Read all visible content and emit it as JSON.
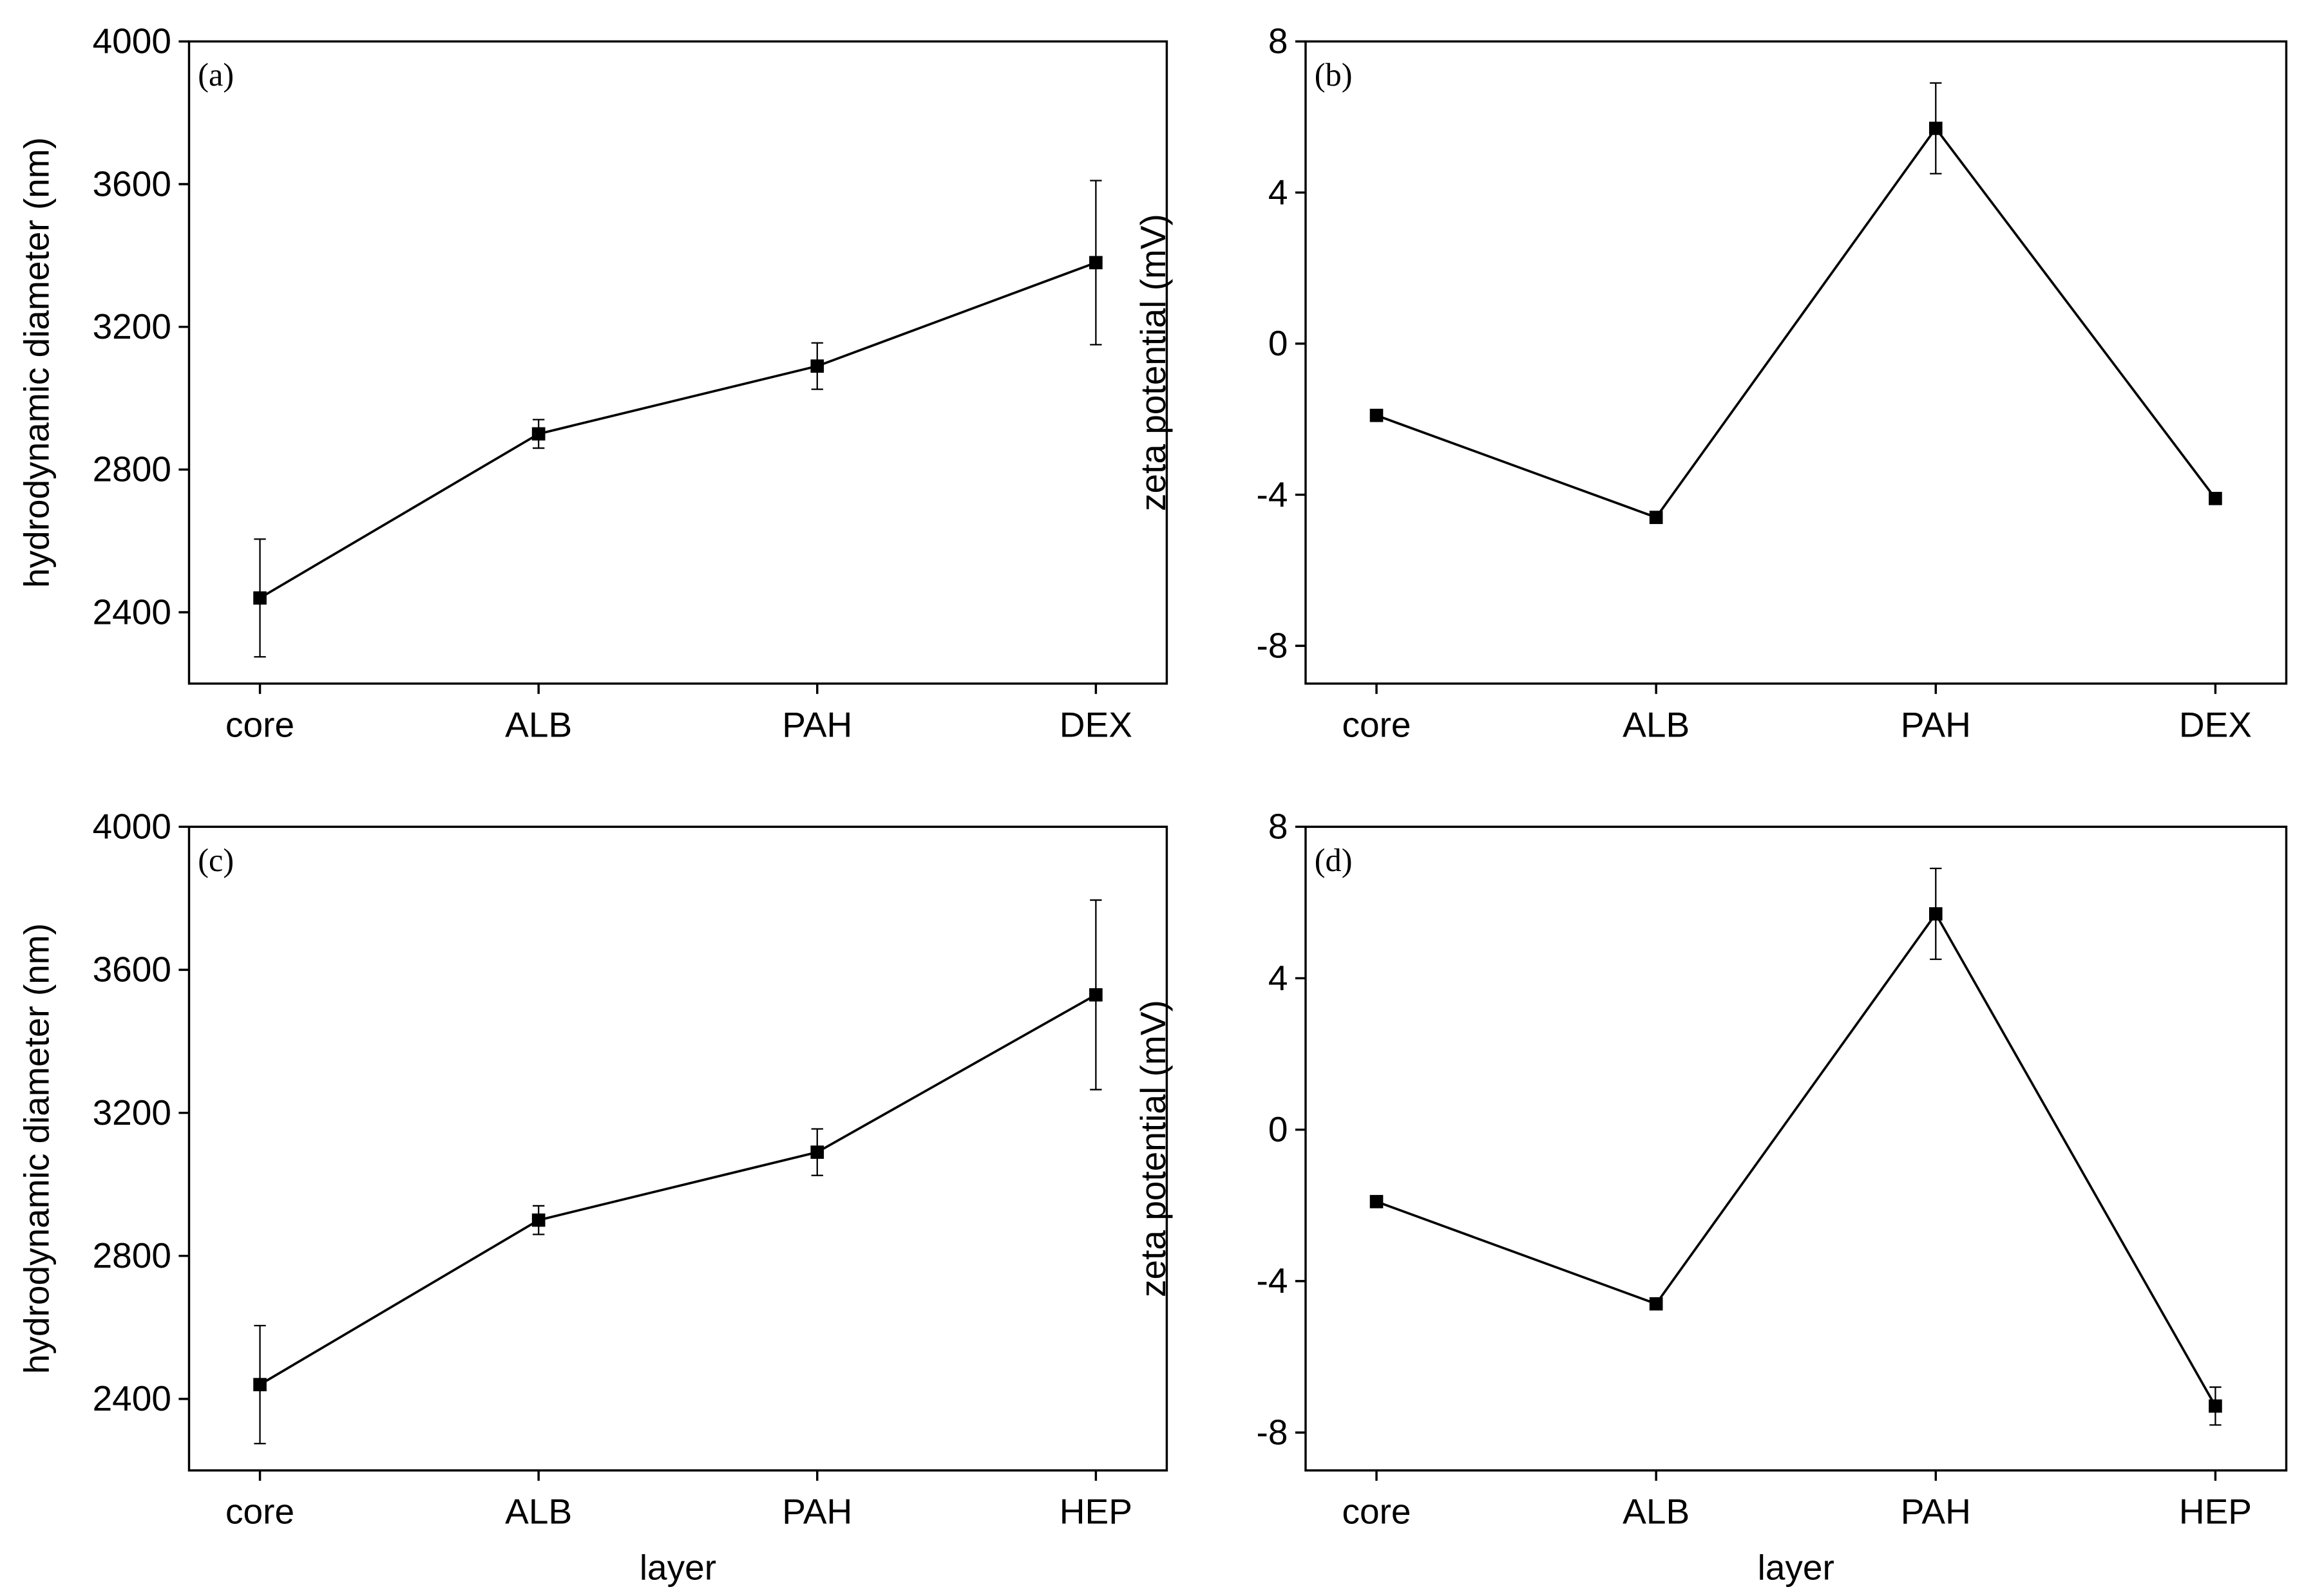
{
  "chart_data": [
    {
      "type": "line",
      "title": "(a)",
      "y_label": "hydrodynamic diameter (nm)",
      "categories": [
        "core",
        "ALB",
        "PAH",
        "DEX"
      ],
      "series": [
        {
          "color": "#000000",
          "values": [
            2440,
            2900,
            3090,
            3380
          ],
          "errors": [
            165,
            40,
            65,
            230
          ]
        }
      ],
      "ylim": [
        2200,
        4000
      ],
      "yticks": [
        2400,
        2800,
        3200,
        3600,
        4000
      ]
    },
    {
      "type": "line",
      "title": "(b)",
      "y_label": "zeta potential (mV)",
      "categories": [
        "core",
        "ALB",
        "PAH",
        "DEX"
      ],
      "series": [
        {
          "color": "#000000",
          "values": [
            -1.9,
            -4.6,
            5.7,
            -4.1
          ],
          "errors": [
            0.1,
            0.05,
            1.2,
            0.15
          ]
        }
      ],
      "ylim": [
        -9,
        8
      ],
      "yticks": [
        -8,
        -4,
        0,
        4,
        8
      ]
    },
    {
      "type": "line",
      "title": "(c)",
      "x_label": "layer",
      "y_label": "hydrodynamic diameter (nm)",
      "categories": [
        "core",
        "ALB",
        "PAH",
        "HEP"
      ],
      "series": [
        {
          "color": "#000000",
          "values": [
            2440,
            2900,
            3090,
            3530
          ],
          "errors": [
            165,
            40,
            65,
            265
          ]
        }
      ],
      "ylim": [
        2200,
        4000
      ],
      "yticks": [
        2400,
        2800,
        3200,
        3600,
        4000
      ]
    },
    {
      "type": "line",
      "title": "(d)",
      "x_label": "layer",
      "y_label": "zeta potential (mV)",
      "categories": [
        "core",
        "ALB",
        "PAH",
        "HEP"
      ],
      "series": [
        {
          "color": "#000000",
          "values": [
            -1.9,
            -4.6,
            5.7,
            -7.3
          ],
          "errors": [
            0.1,
            0.05,
            1.2,
            0.5
          ]
        }
      ],
      "ylim": [
        -9,
        8
      ],
      "yticks": [
        -8,
        -4,
        0,
        4,
        8
      ]
    }
  ]
}
